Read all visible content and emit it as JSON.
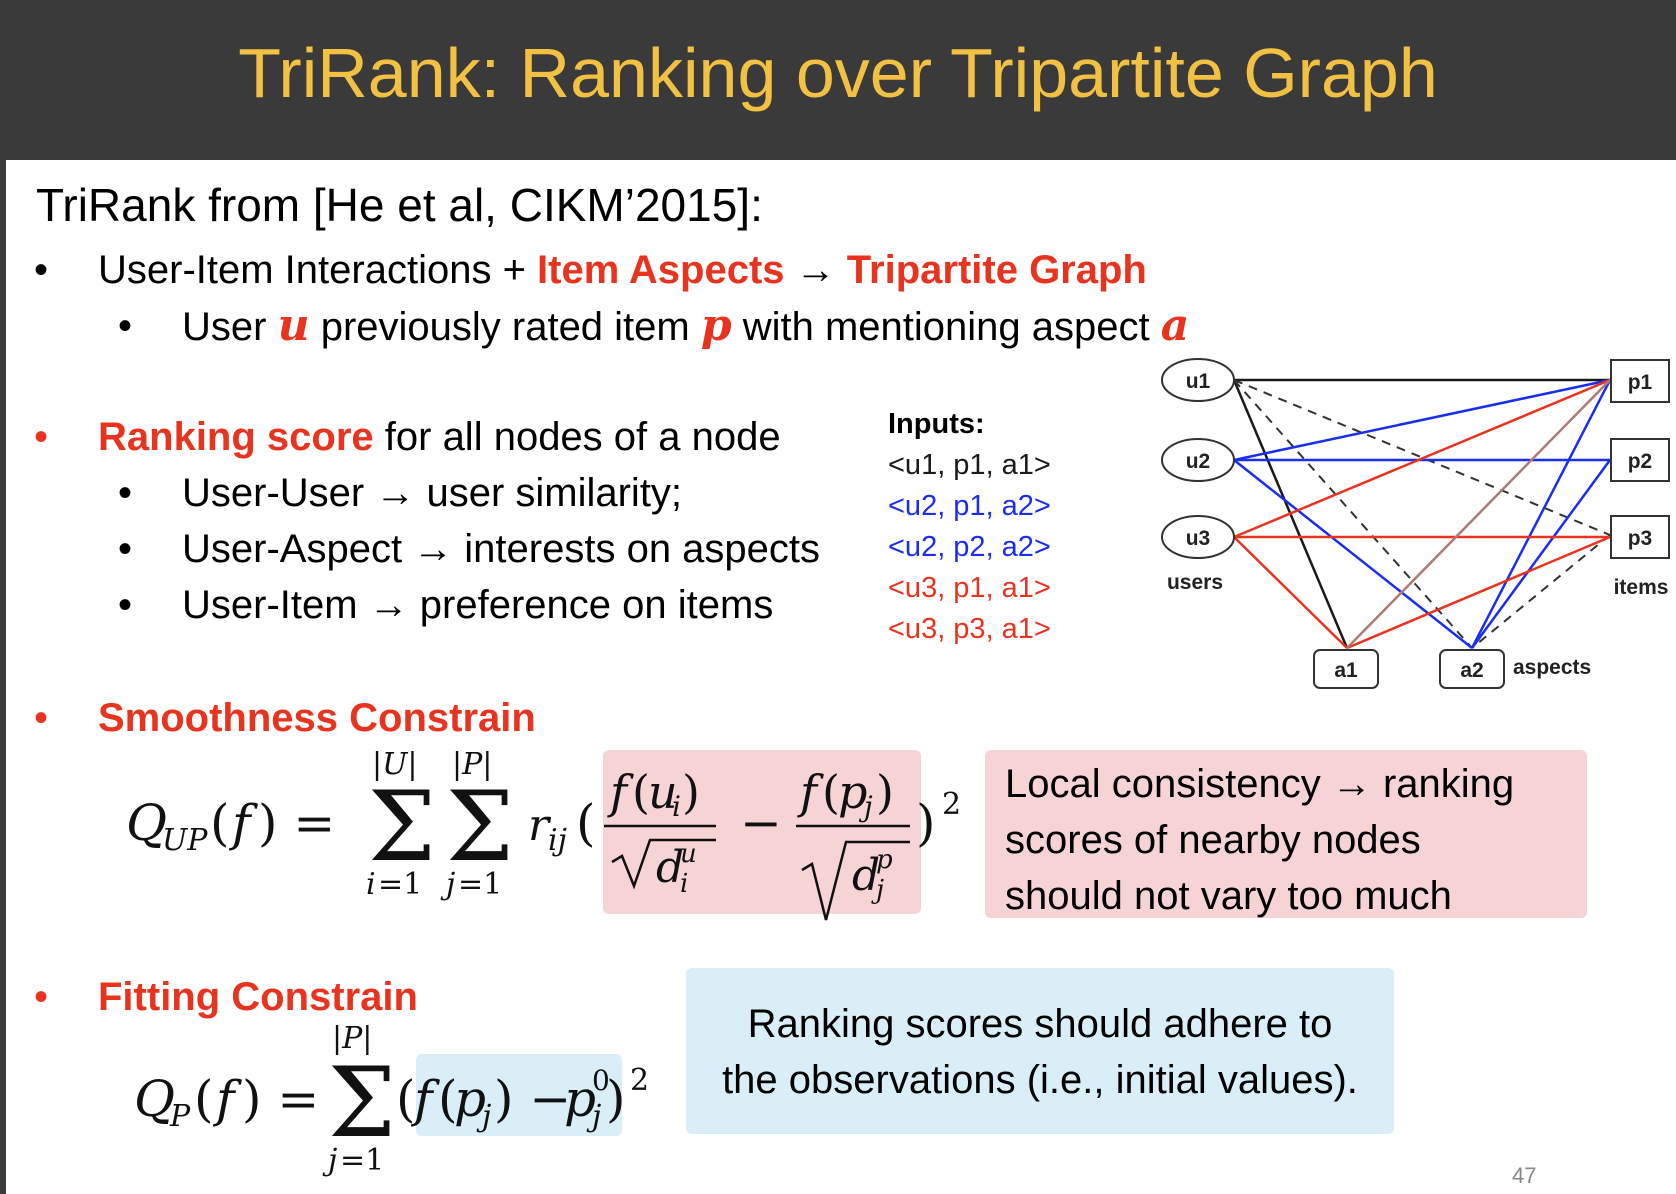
{
  "title": "TriRank: Ranking over Tripartite Graph",
  "intro": "TriRank from [He et al, CIKM’2015]:",
  "bullet1": {
    "pre": "User-Item Interactions + ",
    "red1": "Item Aspects",
    "arrow": "→",
    "red2": "Tripartite Graph",
    "sub": {
      "t1": "User ",
      "u": "u",
      "t2": " previously rated item ",
      "p": "p",
      "t3": " with mentioning aspect ",
      "a": "a"
    }
  },
  "bullet2": {
    "red": "Ranking score",
    "rest": " for all nodes of a node",
    "subs": [
      {
        "left": "User-User ",
        "arrow": "→",
        "right": " user similarity;"
      },
      {
        "left": "User-Aspect ",
        "arrow": "→",
        "right": " interests on aspects"
      },
      {
        "left": "User-Item ",
        "arrow": "→",
        "right": " preference on items"
      }
    ]
  },
  "inputs": {
    "label": "Inputs:",
    "rows": [
      "<u1, p1, a1>",
      "<u2, p1, a2>",
      "<u2, p2, a2>",
      "<u3, p1, a1>",
      "<u3, p3, a1>"
    ],
    "row_colors": [
      "#1a1a1a",
      "#1a2ef0",
      "#1a2ef0",
      "#e8341f",
      "#e8341f"
    ]
  },
  "graph": {
    "users": [
      "u1",
      "u2",
      "u3"
    ],
    "items": [
      "p1",
      "p2",
      "p3"
    ],
    "aspects": [
      "a1",
      "a2"
    ],
    "users_label": "users",
    "items_label": "items",
    "aspects_label": "aspects",
    "colors": {
      "black": "#1a1a1a",
      "blue": "#1a2ef0",
      "red": "#e8341f",
      "brown": "#b07a74"
    }
  },
  "smooth": {
    "heading": "Smoothness Constrain",
    "note": [
      "Local consistency → ranking",
      "scores of nearby nodes",
      "should not vary too much"
    ]
  },
  "fit": {
    "heading": "Fitting Constrain",
    "note": [
      "Ranking scores should adhere to",
      "the observations (i.e., initial values)."
    ]
  },
  "page_number": "47",
  "bullet_symbol": "•",
  "colors": {
    "title_bar": "#3a3a3a",
    "title_text": "#f2c042",
    "accent_red": "#e8341f",
    "pink_box": "#f6d4d6",
    "blue_box": "#daeef8"
  }
}
